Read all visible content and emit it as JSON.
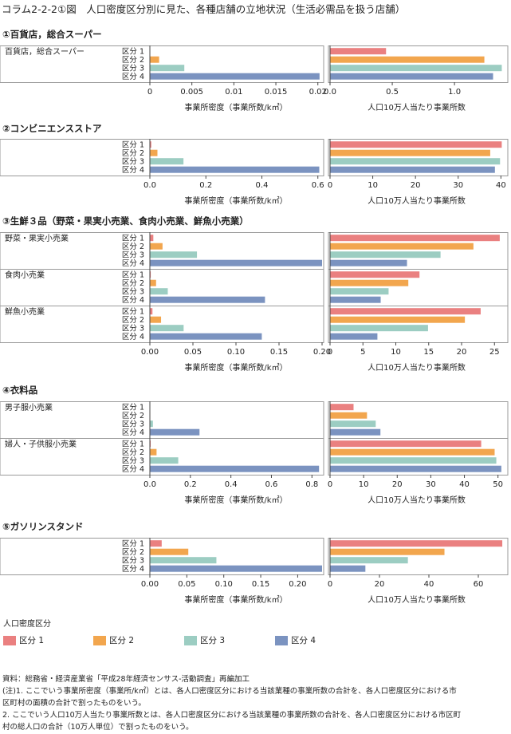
{
  "title": "コラム2-2-2①図　人口密度区分別に見た、各種店舗の立地状況（生活必需品を扱う店舗）",
  "colors": {
    "区分 1": "#ea8080",
    "区分 2": "#f2a64e",
    "区分 3": "#9ccdc2",
    "区分 4": "#7b93c0"
  },
  "chart_data": [
    {
      "title": "①百貨店，総合スーパー",
      "type": "bar",
      "orientation": "horizontal",
      "categories": [
        "区分 1",
        "区分 2",
        "区分 3",
        "区分 4"
      ],
      "groups": [
        {
          "name": "百貨店，総合スーパー",
          "density": [
            0.0,
            0.0011,
            0.0041,
            0.0202
          ],
          "per100k": [
            0.45,
            1.24,
            1.38,
            1.31
          ]
        }
      ],
      "left_axis": {
        "label": "事業所密度（事業所数/k㎡）",
        "ticks": [
          0,
          0.005,
          0.01,
          0.015,
          0.02
        ],
        "tick_labels": [
          "0",
          "0.005",
          "0.01",
          "0.015",
          "0.02"
        ],
        "max": 0.0205
      },
      "right_axis": {
        "label": "人口10万人当たり事業所数",
        "ticks": [
          0,
          0.5,
          1.0
        ],
        "tick_labels": [
          "0.0",
          "0.5",
          "1.0"
        ],
        "max": 1.39
      }
    },
    {
      "title": "②コンビニエンスストア",
      "type": "bar",
      "orientation": "horizontal",
      "categories": [
        "区分 1",
        "区分 2",
        "区分 3",
        "区分 4"
      ],
      "groups": [
        {
          "name": "",
          "density": [
            0.005,
            0.027,
            0.12,
            0.605
          ],
          "per100k": [
            40.2,
            37.5,
            39.8,
            38.6
          ]
        }
      ],
      "left_axis": {
        "label": "事業所密度（事業所数/k㎡）",
        "ticks": [
          0,
          0.2,
          0.4,
          0.6
        ],
        "tick_labels": [
          "0.0",
          "0.2",
          "0.4",
          "0.6"
        ],
        "max": 0.615
      },
      "right_axis": {
        "label": "人口10万人当たり事業所数",
        "ticks": [
          0,
          10,
          20,
          30,
          40
        ],
        "tick_labels": [
          "0",
          "10",
          "20",
          "30",
          "40"
        ],
        "max": 40.5
      }
    },
    {
      "title": "③生鮮３品（野菜・果実小売業、食肉小売業、鮮魚小売業）",
      "type": "bar",
      "orientation": "horizontal",
      "categories": [
        "区分 1",
        "区分 2",
        "区分 3",
        "区分 4"
      ],
      "groups": [
        {
          "name": "野菜・果実小売業",
          "density": [
            0.004,
            0.0147,
            0.0547,
            0.2
          ],
          "per100k": [
            25.8,
            21.8,
            16.8,
            11.7
          ]
        },
        {
          "name": "食肉小売業",
          "density": [
            0.001,
            0.0072,
            0.0208,
            0.1337
          ],
          "per100k": [
            13.6,
            11.9,
            8.9,
            7.7
          ]
        },
        {
          "name": "鮮魚小売業",
          "density": [
            0.003,
            0.013,
            0.0392,
            0.13
          ],
          "per100k": [
            22.9,
            20.5,
            14.9,
            7.2
          ]
        }
      ],
      "left_axis": {
        "label": "事業所密度（事業所数/k㎡）",
        "ticks": [
          0,
          0.05,
          0.1,
          0.15,
          0.2
        ],
        "tick_labels": [
          "0.00",
          "0.05",
          "0.10",
          "0.15",
          "0.20"
        ],
        "max": 0.2
      },
      "right_axis": {
        "label": "人口10万人当たり事業所数",
        "ticks": [
          0,
          5,
          10,
          15,
          20,
          25
        ],
        "tick_labels": [
          "0",
          "5",
          "10",
          "15",
          "20",
          "25"
        ],
        "max": 26.3
      }
    },
    {
      "title": "④衣料品",
      "type": "bar",
      "orientation": "horizontal",
      "categories": [
        "区分 1",
        "区分 2",
        "区分 3",
        "区分 4"
      ],
      "groups": [
        {
          "name": "男子服小売業",
          "density": [
            0.0,
            0.002,
            0.015,
            0.245
          ],
          "per100k": [
            7.0,
            11.0,
            13.6,
            15.0
          ]
        },
        {
          "name": "婦人・子供服小売業",
          "density": [
            0.004,
            0.033,
            0.14,
            0.835
          ],
          "per100k": [
            45.0,
            49.0,
            49.5,
            51.0
          ]
        }
      ],
      "left_axis": {
        "label": "事業所密度（事業所数/k㎡）",
        "ticks": [
          0,
          0.2,
          0.4,
          0.6,
          0.8
        ],
        "tick_labels": [
          "0.0",
          "0.2",
          "0.4",
          "0.6",
          "0.8"
        ],
        "max": 0.85
      },
      "right_axis": {
        "label": "人口10万人当たり事業所数",
        "ticks": [
          0,
          10,
          20,
          30,
          40,
          50
        ],
        "tick_labels": [
          "0",
          "10",
          "20",
          "30",
          "40",
          "50"
        ],
        "max": 51.5
      }
    },
    {
      "title": "⑤ガソリンスタンド",
      "type": "bar",
      "orientation": "horizontal",
      "categories": [
        "区分 1",
        "区分 2",
        "区分 3",
        "区分 4"
      ],
      "groups": [
        {
          "name": "",
          "density": [
            0.016,
            0.052,
            0.09,
            0.233
          ],
          "per100k": [
            69.7,
            46.3,
            31.5,
            14.3
          ]
        }
      ],
      "left_axis": {
        "label": "事業所密度（事業所数/k㎡）",
        "ticks": [
          0,
          0.05,
          0.1,
          0.15,
          0.2
        ],
        "tick_labels": [
          "0.00",
          "0.05",
          "0.10",
          "0.15",
          "0.20"
        ],
        "max": 0.233
      },
      "right_axis": {
        "label": "人口10万人当たり事業所数",
        "ticks": [
          0,
          20,
          40,
          60
        ],
        "tick_labels": [
          "0",
          "20",
          "40",
          "60"
        ],
        "max": 70.0
      }
    }
  ],
  "legend": {
    "title": "人口密度区分",
    "items": [
      "区分 1",
      "区分 2",
      "区分 3",
      "区分 4"
    ]
  },
  "notes": [
    "資料：総務省・経済産業省「平成28年経済センサス-活動調査」再編加工",
    "(注)1. ここでいう事業所密度（事業所/k㎡）とは、各人口密度区分における当該業種の事業所数の合計を、各人口密度区分における市",
    "区町村の面積の合計で割ったものをいう。",
    "2. ここでいう人口10万人当たり事業所数とは、各人口密度区分における当該業種の事業所数の合計を、各人口密度区分における市区町",
    "村の総人口の合計（10万人単位）で割ったものをいう。"
  ]
}
